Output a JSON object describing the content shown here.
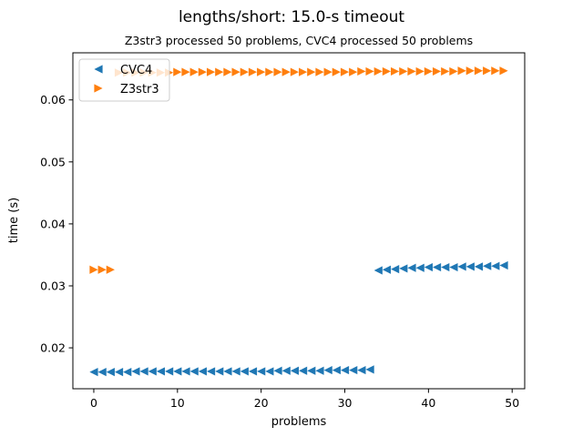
{
  "chart_data": {
    "type": "scatter",
    "title": "lengths/short: 15.0-s timeout",
    "subtitle": "Z3str3 processed 50 problems, CVC4 processed 50 problems",
    "xlabel": "problems",
    "ylabel": "time (s)",
    "xlim": [
      -2.5,
      51.5
    ],
    "ylim": [
      0.0134,
      0.0676
    ],
    "x_ticks": [
      0,
      10,
      20,
      30,
      40,
      50
    ],
    "y_ticks": [
      0.02,
      0.03,
      0.04,
      0.05,
      0.06
    ],
    "y_tick_labels": [
      "0.02",
      "0.03",
      "0.04",
      "0.05",
      "0.06"
    ],
    "grid": false,
    "legend_position": "top-left",
    "series": [
      {
        "name": "CVC4",
        "marker": "triangle-left",
        "color": "#1f77b4",
        "x": [
          0,
          1,
          2,
          3,
          4,
          5,
          6,
          7,
          8,
          9,
          10,
          11,
          12,
          13,
          14,
          15,
          16,
          17,
          18,
          19,
          20,
          21,
          22,
          23,
          24,
          25,
          26,
          27,
          28,
          29,
          30,
          31,
          32,
          33,
          34,
          35,
          36,
          37,
          38,
          39,
          40,
          41,
          42,
          43,
          44,
          45,
          46,
          47,
          48,
          49
        ],
        "y": [
          0.0161,
          0.0161,
          0.0161,
          0.0161,
          0.0161,
          0.0162,
          0.0162,
          0.0162,
          0.0162,
          0.0162,
          0.0162,
          0.0162,
          0.0162,
          0.0162,
          0.0162,
          0.0162,
          0.0162,
          0.0162,
          0.0162,
          0.0162,
          0.0162,
          0.0162,
          0.0163,
          0.0163,
          0.0163,
          0.0163,
          0.0163,
          0.0163,
          0.0164,
          0.0164,
          0.0164,
          0.0164,
          0.0164,
          0.0165,
          0.0325,
          0.0326,
          0.0327,
          0.0328,
          0.0329,
          0.0329,
          0.033,
          0.033,
          0.033,
          0.033,
          0.0331,
          0.0331,
          0.0331,
          0.0332,
          0.0332,
          0.0333
        ]
      },
      {
        "name": "Z3str3",
        "marker": "triangle-right",
        "color": "#ff7f0e",
        "x": [
          0,
          1,
          2,
          3,
          4,
          5,
          6,
          7,
          8,
          9,
          10,
          11,
          12,
          13,
          14,
          15,
          16,
          17,
          18,
          19,
          20,
          21,
          22,
          23,
          24,
          25,
          26,
          27,
          28,
          29,
          30,
          31,
          32,
          33,
          34,
          35,
          36,
          37,
          38,
          39,
          40,
          41,
          42,
          43,
          44,
          45,
          46,
          47,
          48,
          49
        ],
        "y": [
          0.0326,
          0.0326,
          0.0326,
          0.0644,
          0.0644,
          0.0644,
          0.0644,
          0.0644,
          0.0644,
          0.0644,
          0.0645,
          0.0645,
          0.0645,
          0.0645,
          0.0645,
          0.0645,
          0.0645,
          0.0645,
          0.0645,
          0.0645,
          0.0645,
          0.0645,
          0.0645,
          0.0645,
          0.0645,
          0.0645,
          0.0645,
          0.0645,
          0.0645,
          0.0645,
          0.0645,
          0.0645,
          0.0646,
          0.0646,
          0.0646,
          0.0646,
          0.0646,
          0.0646,
          0.0646,
          0.0646,
          0.0646,
          0.0646,
          0.0646,
          0.0646,
          0.0647,
          0.0647,
          0.0647,
          0.0647,
          0.0647,
          0.0647
        ]
      }
    ]
  }
}
